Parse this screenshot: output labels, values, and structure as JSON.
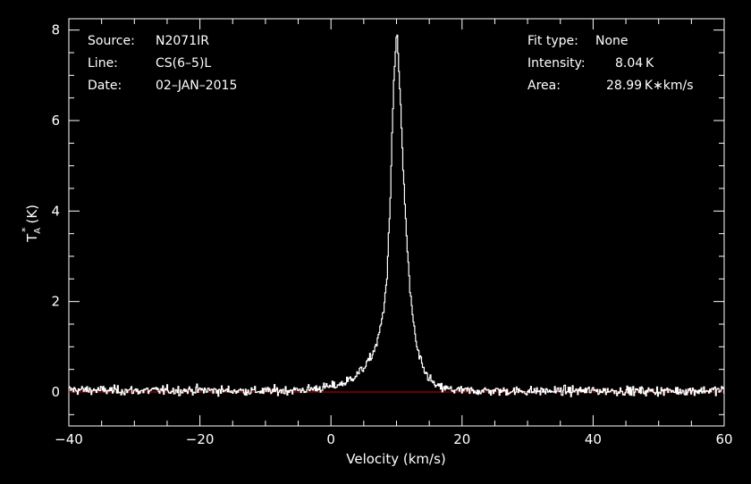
{
  "header_left": {
    "source_label": "Source:",
    "source_value": "N2071IR",
    "line_label": "Line:",
    "line_value": "CS(6–5)L",
    "date_label": "Date:",
    "date_value": "02–JAN–2015"
  },
  "header_right": {
    "fit_label": "Fit type:",
    "fit_value": "None",
    "intensity_label": "Intensity:",
    "intensity_value": "8.04 K",
    "area_label": "Area:",
    "area_value": "28.99 K∗km/s"
  },
  "colors": {
    "background": "#000000",
    "foreground": "#ffffff",
    "baseline": "#cc0000"
  },
  "chart_data": {
    "type": "line",
    "xlabel": "Velocity (km/s)",
    "ylabel_main": "T",
    "ylabel_sub": "A",
    "ylabel_sup": "*",
    "ylabel_unit": "(K)",
    "xlim": [
      -40,
      60
    ],
    "ylim": [
      -0.75,
      8.25
    ],
    "x_ticks": [
      -40,
      -20,
      0,
      20,
      40,
      60
    ],
    "x_tick_labels": [
      "−40",
      "−20",
      "0",
      "20",
      "40",
      "60"
    ],
    "y_ticks": [
      0,
      2,
      4,
      6,
      8
    ],
    "y_tick_labels": [
      "0",
      "2",
      "4",
      "6",
      "8"
    ],
    "grid": false,
    "baseline": 0,
    "series": [
      {
        "x": [
          -40,
          -30,
          -20,
          -10,
          -4,
          0,
          2,
          4,
          5,
          6,
          7,
          8,
          8.5,
          9,
          9.5,
          10,
          10.5,
          11,
          11.5,
          12,
          13,
          14,
          15,
          16,
          18,
          20,
          30,
          40,
          50,
          60
        ],
        "values": [
          0.05,
          0.03,
          0.04,
          0.02,
          0.05,
          0.12,
          0.2,
          0.4,
          0.55,
          0.75,
          1.1,
          1.8,
          2.6,
          4.3,
          6.8,
          8.04,
          6.5,
          4.8,
          3.4,
          2.2,
          1.0,
          0.5,
          0.3,
          0.12,
          0.06,
          0.03,
          0.02,
          0.03,
          0.02,
          0.04
        ],
        "noise_rms": 0.07
      }
    ]
  }
}
